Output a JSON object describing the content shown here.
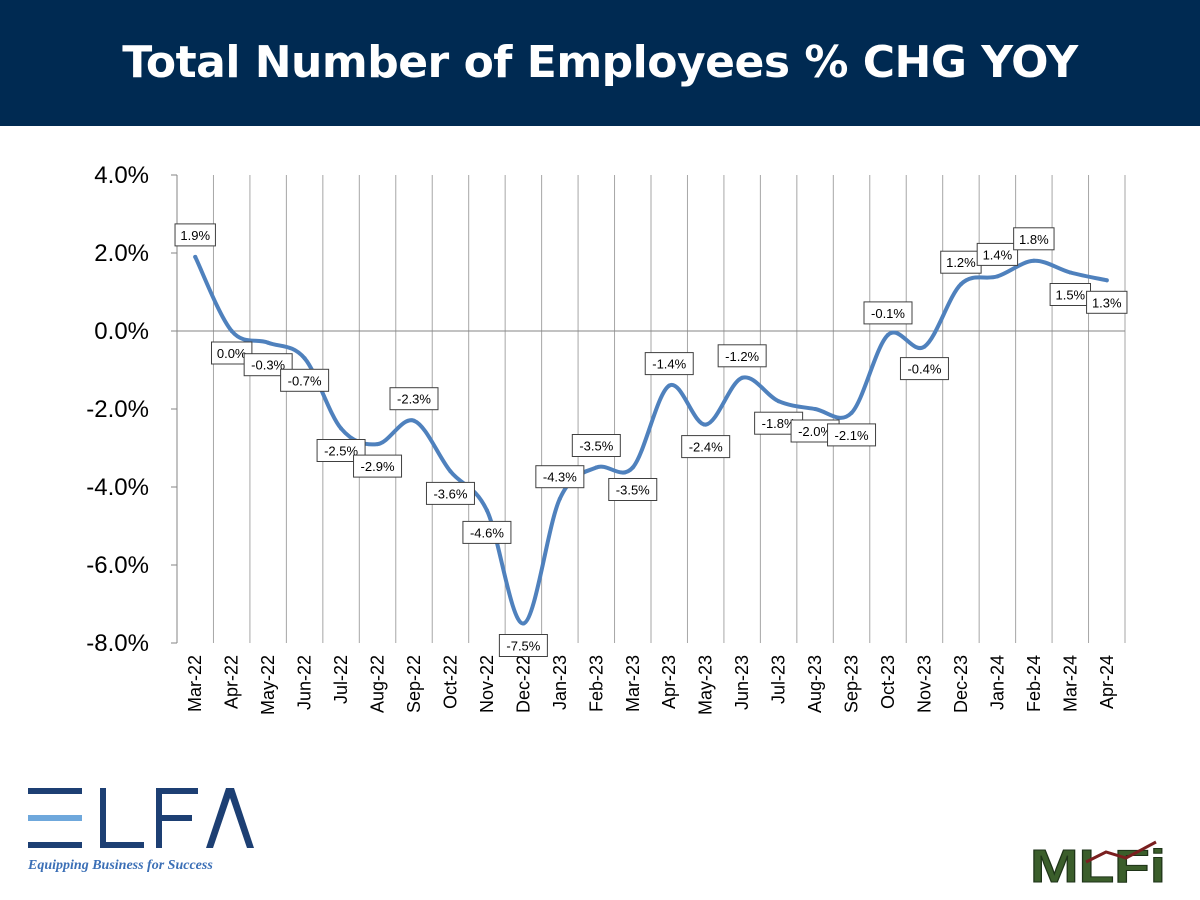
{
  "header": {
    "title": "Total Number of Employees % CHG YOY"
  },
  "colors": {
    "header_bg": "#002a52",
    "line": "#4f81bd",
    "grid": "#a6a6a6",
    "elfa_blue": "#1d3f73",
    "elfa_light": "#6fa8dc",
    "mlfi_green": "#3b5e2b"
  },
  "logos": {
    "elfa": {
      "name": "ELFA",
      "tagline": "Equipping Business for Success"
    },
    "mlfi": {
      "name": "MLFi"
    }
  },
  "chart_data": {
    "type": "line",
    "title": "Total Number of Employees % CHG YOY",
    "categories": [
      "Mar-22",
      "Apr-22",
      "May-22",
      "Jun-22",
      "Jul-22",
      "Aug-22",
      "Sep-22",
      "Oct-22",
      "Nov-22",
      "Dec-22",
      "Jan-23",
      "Feb-23",
      "Mar-23",
      "Apr-23",
      "May-23",
      "Jun-23",
      "Jul-23",
      "Aug-23",
      "Sep-23",
      "Oct-23",
      "Nov-23",
      "Dec-23",
      "Jan-24",
      "Feb-24",
      "Mar-24",
      "Apr-24"
    ],
    "values": [
      1.9,
      0.0,
      -0.3,
      -0.7,
      -2.5,
      -2.9,
      -2.3,
      -3.6,
      -4.6,
      -7.5,
      -4.3,
      -3.5,
      -3.5,
      -1.4,
      -2.4,
      -1.2,
      -1.8,
      -2.0,
      -2.1,
      -0.1,
      -0.4,
      1.2,
      1.4,
      1.8,
      1.5,
      1.3
    ],
    "labels": [
      "1.9%",
      "0.0%",
      "-0.3%",
      "-0.7%",
      "-2.5%",
      "-2.9%",
      "-2.3%",
      "-3.6%",
      "-4.6%",
      "-7.5%",
      "-4.3%",
      "-3.5%",
      "-3.5%",
      "-1.4%",
      "-2.4%",
      "-1.2%",
      "-1.8%",
      "-2.0%",
      "-2.1%",
      "-0.1%",
      "-0.4%",
      "1.2%",
      "1.4%",
      "1.8%",
      "1.5%",
      "1.3%"
    ],
    "yticks": [
      "4.0%",
      "2.0%",
      "0.0%",
      "-2.0%",
      "-4.0%",
      "-6.0%",
      "-8.0%"
    ],
    "ylim": [
      -8,
      4
    ],
    "grid": "vertical",
    "legend": "none"
  }
}
